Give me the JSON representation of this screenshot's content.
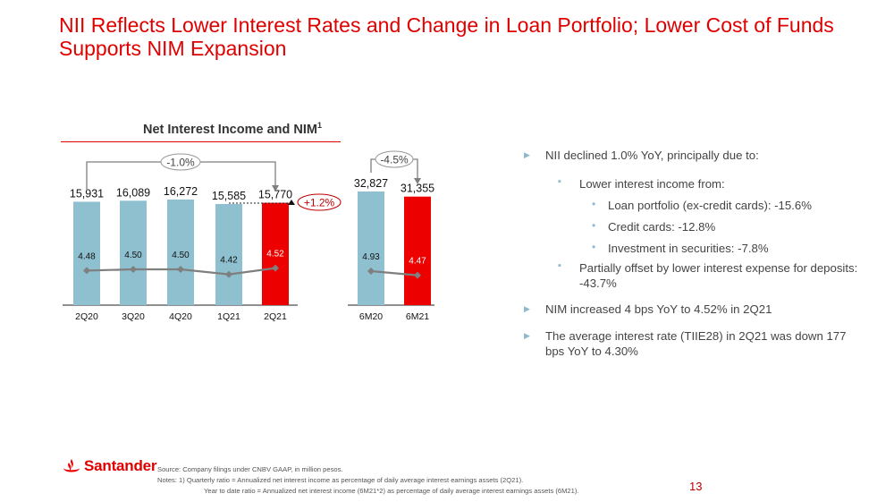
{
  "title": "NII Reflects Lower Interest Rates and Change in Loan Portfolio; Lower Cost of Funds Supports NIM Expansion",
  "chart_data": [
    {
      "type": "bar",
      "title": "Net Interest Income and NIM",
      "title_superscript": "1",
      "categories": [
        "2Q20",
        "3Q20",
        "4Q20",
        "1Q21",
        "2Q21"
      ],
      "series": [
        {
          "name": "Net Interest Income",
          "values": [
            15931,
            16089,
            16272,
            15585,
            15770
          ],
          "labels": [
            "15,931",
            "16,089",
            "16,272",
            "15,585",
            "15,770"
          ],
          "colors": [
            "#8ec0cf",
            "#8ec0cf",
            "#8ec0cf",
            "#8ec0cf",
            "#ec0000"
          ]
        },
        {
          "name": "NIM",
          "type": "line",
          "values": [
            4.48,
            4.5,
            4.5,
            4.42,
            4.52
          ],
          "labels": [
            "4.48",
            "4.50",
            "4.50",
            "4.42",
            "4.52"
          ],
          "color": "#7f7f7f"
        }
      ],
      "annotations": [
        {
          "text": "-1.0%",
          "from": "2Q20",
          "to": "2Q21"
        },
        {
          "text": "+1.2%",
          "from": "1Q21",
          "to": "2Q21"
        }
      ]
    },
    {
      "type": "bar",
      "categories": [
        "6M20",
        "6M21"
      ],
      "series": [
        {
          "name": "Net Interest Income",
          "values": [
            32827,
            31355
          ],
          "labels": [
            "32,827",
            "31,355"
          ],
          "colors": [
            "#8ec0cf",
            "#ec0000"
          ]
        },
        {
          "name": "NIM",
          "type": "line",
          "values": [
            4.93,
            4.47
          ],
          "labels": [
            "4.93",
            "4.47"
          ],
          "color": "#7f7f7f"
        }
      ],
      "annotations": [
        {
          "text": "-4.5%",
          "from": "6M20",
          "to": "6M21"
        }
      ]
    }
  ],
  "bullets": [
    {
      "level": 1,
      "text": "NII declined 1.0% YoY, principally due to:"
    },
    {
      "level": 2,
      "text": "Lower interest income from:"
    },
    {
      "level": 3,
      "text": "Loan portfolio (ex-credit cards): -15.6%"
    },
    {
      "level": 3,
      "text": "Credit cards: -12.8%"
    },
    {
      "level": 3,
      "text": "Investment in securities: -7.8%"
    },
    {
      "level": 2,
      "text": "Partially offset by lower interest expense for deposits: -43.7%"
    },
    {
      "level": 1,
      "text": "NIM increased 4 bps YoY to 4.52% in 2Q21"
    },
    {
      "level": 1,
      "text": "The average interest rate (TIIE28) in 2Q21 was down 177 bps YoY to 4.30%"
    }
  ],
  "footer": {
    "brand": "Santander",
    "source": "Source: Company filings under CNBV GAAP, in million pesos.",
    "note1": "Notes:  1) Quarterly ratio = Annualized net interest income as percentage of daily average interest earnings assets (2Q21).",
    "note2": "Year to date ratio = Annualized net interest income (6M21*2) as percentage of daily average interest earnings assets (6M21).",
    "page": "13"
  },
  "colors": {
    "brand_red": "#ec0000",
    "bar_blue": "#8ec0cf",
    "line_gray": "#7f7f7f"
  }
}
